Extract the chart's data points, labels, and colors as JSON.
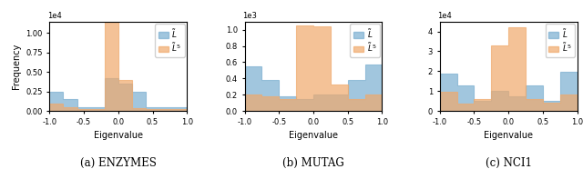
{
  "panels": [
    {
      "caption": "(a) ENZYMES",
      "ylabel": "Frequency",
      "xlabel": "Eigenvalue",
      "ylim": [
        0,
        11500.0
      ],
      "ytick_scale": 10000.0,
      "yticks": [
        0.0,
        0.25,
        0.5,
        0.75,
        1.0
      ],
      "ytick_labels": [
        "0.00",
        "0.25",
        "0.50",
        "0.75",
        "1.00"
      ],
      "exponent": "1e4",
      "blue_heights": [
        2500,
        1500,
        500,
        500,
        4200,
        3500,
        2500,
        500,
        500,
        500
      ],
      "orange_heights": [
        1000,
        500,
        200,
        200,
        11500,
        4000,
        400,
        200,
        200,
        200
      ],
      "n_bins": 10
    },
    {
      "caption": "(b) MUTAG",
      "ylabel": "Frequency",
      "xlabel": "Eigenvalue",
      "ylim": [
        0,
        1100.0
      ],
      "ytick_scale": 1000.0,
      "yticks": [
        0.0,
        0.2,
        0.4,
        0.6,
        0.8,
        1.0
      ],
      "ytick_labels": [
        "0.0",
        "0.2",
        "0.4",
        "0.6",
        "0.8",
        "1.0"
      ],
      "exponent": "1e3",
      "blue_heights": [
        550,
        380,
        180,
        150,
        200,
        200,
        380,
        570
      ],
      "orange_heights": [
        200,
        175,
        150,
        1050,
        1040,
        320,
        150,
        200
      ],
      "n_bins": 8
    },
    {
      "caption": "(c) NCI1",
      "ylabel": "Frequency",
      "xlabel": "Eigenvalue",
      "ylim": [
        0,
        45000.0
      ],
      "ytick_scale": 10000.0,
      "yticks": [
        0,
        1,
        2,
        3,
        4
      ],
      "ytick_labels": [
        "0",
        "1",
        "2",
        "3",
        "4"
      ],
      "exponent": "1e4",
      "blue_heights": [
        19000,
        13000,
        5000,
        10000,
        7500,
        13000,
        5000,
        19500
      ],
      "orange_heights": [
        9500,
        3500,
        6000,
        33000,
        42000,
        6000,
        4000,
        8500
      ],
      "n_bins": 8
    }
  ],
  "blue_color": "#7aaed0",
  "orange_color": "#f0a96b",
  "blue_alpha": 0.7,
  "orange_alpha": 0.7,
  "legend_label_blue": "$\\tilde{L}$",
  "legend_label_orange": "$\\tilde{L}^5$"
}
